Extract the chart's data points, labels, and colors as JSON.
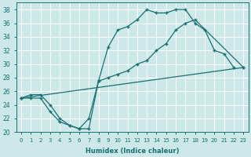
{
  "xlabel": "Humidex (Indice chaleur)",
  "background_color": "#cce8e8",
  "line_color": "#1a7070",
  "grid_color": "#ffffff",
  "xlim": [
    -0.5,
    23.5
  ],
  "ylim": [
    20,
    39
  ],
  "xticks": [
    0,
    1,
    2,
    3,
    4,
    5,
    6,
    7,
    8,
    9,
    10,
    11,
    12,
    13,
    14,
    15,
    16,
    17,
    18,
    19,
    20,
    21,
    22,
    23
  ],
  "yticks": [
    20,
    22,
    24,
    26,
    28,
    30,
    32,
    34,
    36,
    38
  ],
  "line1_x": [
    0,
    1,
    2,
    3,
    4,
    5,
    6,
    7,
    8,
    9,
    10,
    11,
    12,
    13,
    14,
    15,
    16,
    17,
    18,
    19,
    20,
    21,
    22
  ],
  "line1_y": [
    25,
    25,
    25,
    23,
    21.5,
    21,
    20.5,
    20.5,
    27.5,
    32.5,
    35,
    35.5,
    36.5,
    38,
    37.5,
    37.5,
    38,
    38,
    36,
    35,
    32,
    31.5,
    29.5
  ],
  "line2_x": [
    0,
    1,
    2,
    3,
    4,
    5,
    6,
    7,
    8,
    9,
    10,
    11,
    12,
    13,
    14,
    15,
    16,
    17,
    18,
    23
  ],
  "line2_y": [
    25,
    25.5,
    25.5,
    24,
    22,
    21,
    20.5,
    22,
    27.5,
    28,
    28.5,
    29,
    30,
    30.5,
    32,
    33,
    35,
    36,
    36.5,
    29.5
  ],
  "line3_x": [
    0,
    23
  ],
  "line3_y": [
    25,
    29.5
  ]
}
